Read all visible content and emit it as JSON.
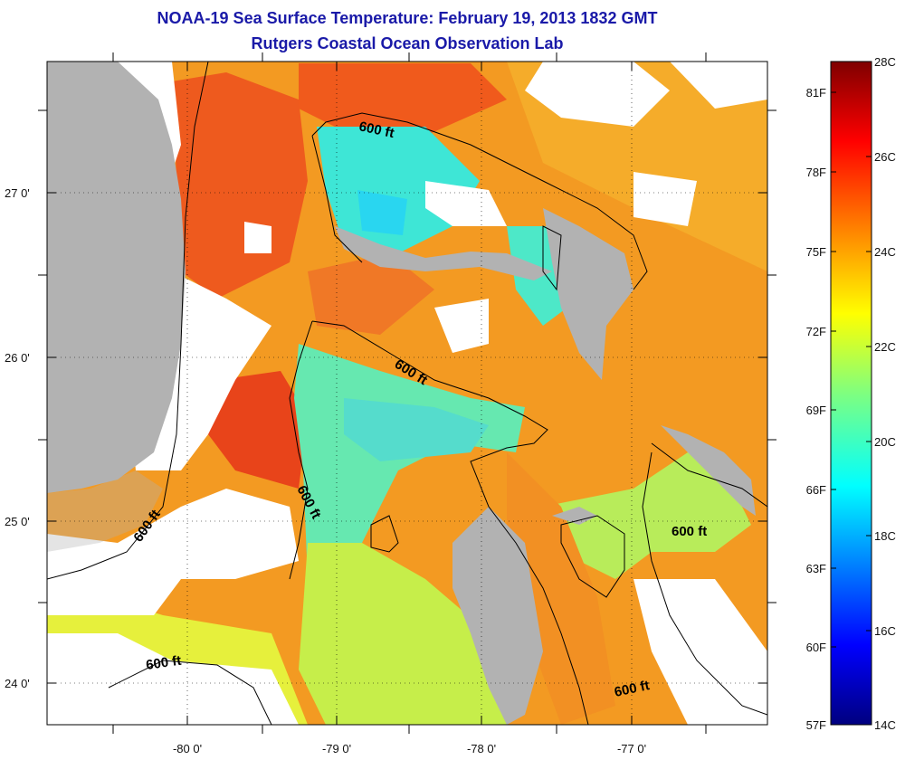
{
  "title": "NOAA-19 Sea Surface Temperature:  February 19, 2013 1832 GMT",
  "subtitle": "Rutgers Coastal Ocean Observation Lab",
  "map": {
    "lat_labels": [
      "27 0'",
      "26 0'",
      "25 0'",
      "24 0'"
    ],
    "lon_labels": [
      "-80 0'",
      "-79 0'",
      "-78 0'",
      "-77 0'"
    ],
    "contour_label": "600 ft",
    "colors": {
      "land": "#b2b2b2",
      "cloud": "#ffffff",
      "contour": "#000000"
    }
  },
  "colorbar": {
    "celsius_labels": [
      "28C",
      "26C",
      "24C",
      "22C",
      "20C",
      "18C",
      "16C",
      "14C"
    ],
    "fahrenheit_labels": [
      "81F",
      "78F",
      "75F",
      "72F",
      "69F",
      "66F",
      "63F",
      "60F",
      "57F"
    ],
    "range_c": [
      14,
      28
    ],
    "palette": "jet"
  }
}
